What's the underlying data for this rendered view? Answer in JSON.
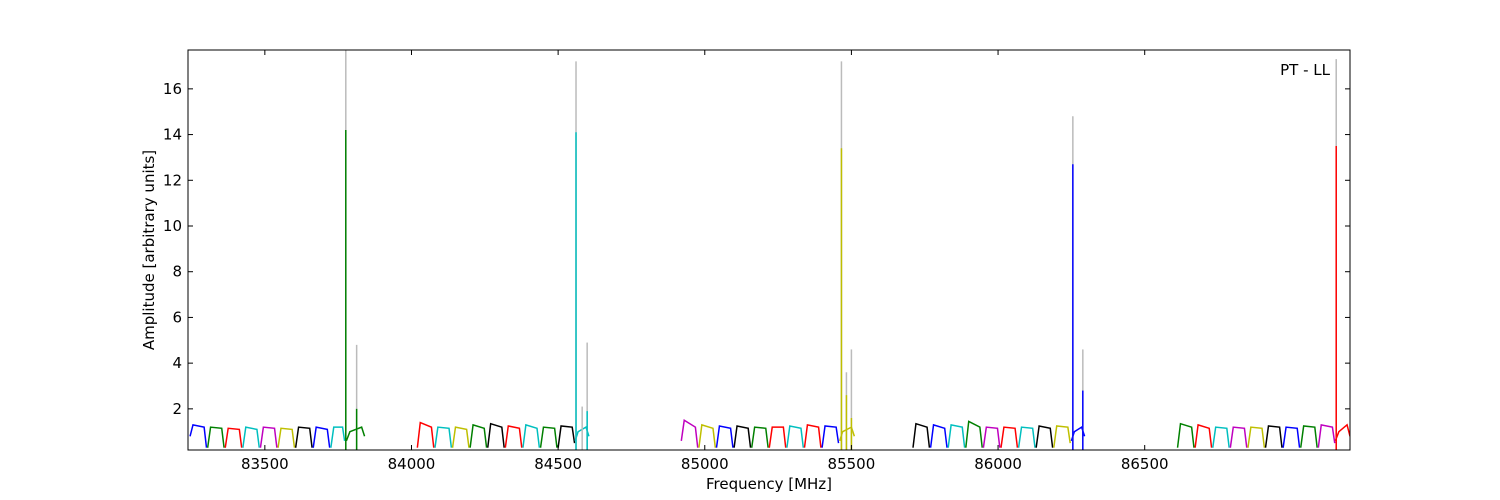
{
  "chart_data": {
    "type": "spectrum",
    "xlabel": "Frequency [MHz]",
    "ylabel": "Amplitude [arbitrary units]",
    "annotation": "PT - LL",
    "xlim": [
      83238,
      87200
    ],
    "ylim": [
      0.2,
      17.7
    ],
    "xticks": [
      83500,
      84000,
      84500,
      85000,
      85500,
      86000,
      86500
    ],
    "yticks": [
      2,
      4,
      6,
      8,
      10,
      12,
      14,
      16
    ],
    "windows": [
      {
        "color": "#0000ff",
        "x": [
          83245,
          83255,
          83293,
          83301
        ],
        "values": [
          0.8,
          1.3,
          1.2,
          0.3
        ]
      },
      {
        "color": "#008000",
        "x": [
          83305,
          83315,
          83353,
          83361
        ],
        "values": [
          0.3,
          1.2,
          1.15,
          0.3
        ]
      },
      {
        "color": "#ff0000",
        "x": [
          83365,
          83375,
          83413,
          83421
        ],
        "values": [
          0.3,
          1.15,
          1.1,
          0.3
        ]
      },
      {
        "color": "#00bfbf",
        "x": [
          83425,
          83435,
          83473,
          83481
        ],
        "values": [
          0.3,
          1.2,
          1.1,
          0.3
        ]
      },
      {
        "color": "#bf00bf",
        "x": [
          83485,
          83495,
          83533,
          83541
        ],
        "values": [
          0.3,
          1.2,
          1.15,
          0.3
        ]
      },
      {
        "color": "#bfbf00",
        "x": [
          83545,
          83555,
          83593,
          83601
        ],
        "values": [
          0.3,
          1.15,
          1.1,
          0.3
        ]
      },
      {
        "color": "#000000",
        "x": [
          83605,
          83615,
          83653,
          83661
        ],
        "values": [
          0.3,
          1.2,
          1.15,
          0.3
        ]
      },
      {
        "color": "#0000ff",
        "x": [
          83665,
          83675,
          83713,
          83721
        ],
        "values": [
          0.3,
          1.2,
          1.1,
          0.3
        ]
      },
      {
        "color": "#00bfbf",
        "x": [
          83725,
          83735,
          83765,
          83772
        ],
        "values": [
          0.3,
          1.2,
          1.2,
          0.6
        ]
      },
      {
        "color": "#008000",
        "x": [
          83778,
          83790,
          83830,
          83840
        ],
        "values": [
          0.6,
          1.0,
          1.2,
          0.8
        ]
      },
      {
        "color": "#ff0000",
        "x": [
          84020,
          84030,
          84068,
          84076
        ],
        "values": [
          0.3,
          1.4,
          1.2,
          0.3
        ]
      },
      {
        "color": "#00bfbf",
        "x": [
          84080,
          84090,
          84128,
          84136
        ],
        "values": [
          0.3,
          1.2,
          1.15,
          0.3
        ]
      },
      {
        "color": "#bfbf00",
        "x": [
          84140,
          84150,
          84188,
          84196
        ],
        "values": [
          0.3,
          1.2,
          1.1,
          0.3
        ]
      },
      {
        "color": "#008000",
        "x": [
          84200,
          84210,
          84248,
          84256
        ],
        "values": [
          0.3,
          1.3,
          1.15,
          0.3
        ]
      },
      {
        "color": "#000000",
        "x": [
          84260,
          84270,
          84308,
          84316
        ],
        "values": [
          0.3,
          1.35,
          1.2,
          0.3
        ]
      },
      {
        "color": "#ff0000",
        "x": [
          84320,
          84330,
          84368,
          84376
        ],
        "values": [
          0.3,
          1.25,
          1.15,
          0.3
        ]
      },
      {
        "color": "#00bfbf",
        "x": [
          84380,
          84390,
          84428,
          84436
        ],
        "values": [
          0.3,
          1.3,
          1.15,
          0.3
        ]
      },
      {
        "color": "#008000",
        "x": [
          84440,
          84450,
          84488,
          84496
        ],
        "values": [
          0.3,
          1.2,
          1.15,
          0.3
        ]
      },
      {
        "color": "#000000",
        "x": [
          84500,
          84510,
          84548,
          84556
        ],
        "values": [
          0.3,
          1.25,
          1.2,
          0.5
        ]
      },
      {
        "color": "#00bfbf",
        "x": [
          84558,
          84568,
          84595,
          84605
        ],
        "values": [
          0.6,
          1.0,
          1.2,
          0.8
        ]
      },
      {
        "color": "#bf00bf",
        "x": [
          84920,
          84930,
          84968,
          84976
        ],
        "values": [
          0.6,
          1.5,
          1.2,
          0.3
        ]
      },
      {
        "color": "#bfbf00",
        "x": [
          84980,
          84990,
          85028,
          85036
        ],
        "values": [
          0.3,
          1.3,
          1.15,
          0.3
        ]
      },
      {
        "color": "#0000ff",
        "x": [
          85040,
          85050,
          85088,
          85096
        ],
        "values": [
          0.3,
          1.25,
          1.15,
          0.3
        ]
      },
      {
        "color": "#000000",
        "x": [
          85100,
          85110,
          85148,
          85156
        ],
        "values": [
          0.3,
          1.25,
          1.15,
          0.3
        ]
      },
      {
        "color": "#008000",
        "x": [
          85160,
          85170,
          85208,
          85216
        ],
        "values": [
          0.3,
          1.2,
          1.15,
          0.3
        ]
      },
      {
        "color": "#ff0000",
        "x": [
          85220,
          85230,
          85268,
          85276
        ],
        "values": [
          0.3,
          1.2,
          1.2,
          0.3
        ]
      },
      {
        "color": "#00bfbf",
        "x": [
          85280,
          85290,
          85328,
          85336
        ],
        "values": [
          0.3,
          1.25,
          1.15,
          0.3
        ]
      },
      {
        "color": "#ff0000",
        "x": [
          85340,
          85350,
          85388,
          85396
        ],
        "values": [
          0.3,
          1.3,
          1.2,
          0.3
        ]
      },
      {
        "color": "#0000ff",
        "x": [
          85400,
          85410,
          85448,
          85456
        ],
        "values": [
          0.3,
          1.25,
          1.2,
          0.5
        ]
      },
      {
        "color": "#bfbf00",
        "x": [
          85460,
          85470,
          85500,
          85510
        ],
        "values": [
          0.6,
          1.0,
          1.2,
          0.8
        ]
      },
      {
        "color": "#000000",
        "x": [
          85710,
          85720,
          85758,
          85766
        ],
        "values": [
          0.3,
          1.35,
          1.2,
          0.3
        ]
      },
      {
        "color": "#0000ff",
        "x": [
          85770,
          85780,
          85818,
          85826
        ],
        "values": [
          0.3,
          1.3,
          1.15,
          0.3
        ]
      },
      {
        "color": "#00bfbf",
        "x": [
          85830,
          85840,
          85878,
          85886
        ],
        "values": [
          0.3,
          1.3,
          1.2,
          0.3
        ]
      },
      {
        "color": "#008000",
        "x": [
          85890,
          85900,
          85938,
          85946
        ],
        "values": [
          0.3,
          1.45,
          1.2,
          0.3
        ]
      },
      {
        "color": "#bf00bf",
        "x": [
          85950,
          85960,
          85998,
          86006
        ],
        "values": [
          0.3,
          1.2,
          1.15,
          0.3
        ]
      },
      {
        "color": "#ff0000",
        "x": [
          86010,
          86020,
          86058,
          86066
        ],
        "values": [
          0.3,
          1.2,
          1.15,
          0.3
        ]
      },
      {
        "color": "#00bfbf",
        "x": [
          86070,
          86080,
          86118,
          86126
        ],
        "values": [
          0.3,
          1.2,
          1.15,
          0.3
        ]
      },
      {
        "color": "#000000",
        "x": [
          86130,
          86140,
          86178,
          86186
        ],
        "values": [
          0.3,
          1.25,
          1.15,
          0.3
        ]
      },
      {
        "color": "#bfbf00",
        "x": [
          86190,
          86200,
          86238,
          86246
        ],
        "values": [
          0.3,
          1.25,
          1.2,
          0.5
        ]
      },
      {
        "color": "#0000ff",
        "x": [
          86250,
          86260,
          86285,
          86295
        ],
        "values": [
          0.6,
          1.0,
          1.2,
          0.8
        ]
      },
      {
        "color": "#008000",
        "x": [
          86612,
          86622,
          86660,
          86668
        ],
        "values": [
          0.3,
          1.35,
          1.2,
          0.3
        ]
      },
      {
        "color": "#ff0000",
        "x": [
          86672,
          86682,
          86720,
          86728
        ],
        "values": [
          0.3,
          1.3,
          1.15,
          0.3
        ]
      },
      {
        "color": "#00bfbf",
        "x": [
          86732,
          86742,
          86780,
          86788
        ],
        "values": [
          0.3,
          1.2,
          1.15,
          0.3
        ]
      },
      {
        "color": "#bf00bf",
        "x": [
          86792,
          86802,
          86840,
          86848
        ],
        "values": [
          0.3,
          1.2,
          1.15,
          0.3
        ]
      },
      {
        "color": "#bfbf00",
        "x": [
          86852,
          86862,
          86900,
          86908
        ],
        "values": [
          0.3,
          1.2,
          1.15,
          0.3
        ]
      },
      {
        "color": "#000000",
        "x": [
          86912,
          86922,
          86960,
          86968
        ],
        "values": [
          0.3,
          1.25,
          1.2,
          0.3
        ]
      },
      {
        "color": "#0000ff",
        "x": [
          86972,
          86982,
          87020,
          87028
        ],
        "values": [
          0.3,
          1.2,
          1.15,
          0.3
        ]
      },
      {
        "color": "#008000",
        "x": [
          87032,
          87042,
          87080,
          87088
        ],
        "values": [
          0.3,
          1.25,
          1.2,
          0.3
        ]
      },
      {
        "color": "#bf00bf",
        "x": [
          87092,
          87102,
          87140,
          87148
        ],
        "values": [
          0.3,
          1.3,
          1.2,
          0.5
        ]
      },
      {
        "color": "#ff0000",
        "x": [
          87150,
          87162,
          87190,
          87200
        ],
        "values": [
          0.6,
          1.0,
          1.3,
          0.8
        ]
      }
    ],
    "spikes": [
      {
        "color": "#bbbbbb",
        "x": 83776,
        "value": 17.7
      },
      {
        "color": "#bbbbbb",
        "x": 83813,
        "value": 4.8
      },
      {
        "color": "#bbbbbb",
        "x": 84561,
        "value": 17.2
      },
      {
        "color": "#bbbbbb",
        "x": 84582,
        "value": 2.1
      },
      {
        "color": "#bbbbbb",
        "x": 84599,
        "value": 4.9
      },
      {
        "color": "#bbbbbb",
        "x": 85466,
        "value": 17.2
      },
      {
        "color": "#bbbbbb",
        "x": 85483,
        "value": 3.6
      },
      {
        "color": "#bbbbbb",
        "x": 85500,
        "value": 4.6
      },
      {
        "color": "#bbbbbb",
        "x": 86255,
        "value": 14.8
      },
      {
        "color": "#bbbbbb",
        "x": 86289,
        "value": 4.6
      },
      {
        "color": "#bbbbbb",
        "x": 87153,
        "value": 17.3
      },
      {
        "color": "#008000",
        "x": 83776,
        "value": 14.2
      },
      {
        "color": "#008000",
        "x": 83813,
        "value": 2.0
      },
      {
        "color": "#00bfbf",
        "x": 84561,
        "value": 14.1
      },
      {
        "color": "#00bfbf",
        "x": 84599,
        "value": 1.9
      },
      {
        "color": "#bfbf00",
        "x": 85466,
        "value": 13.4
      },
      {
        "color": "#bfbf00",
        "x": 85483,
        "value": 2.6
      },
      {
        "color": "#bfbf00",
        "x": 85500,
        "value": 1.6
      },
      {
        "color": "#0000ff",
        "x": 86255,
        "value": 12.7
      },
      {
        "color": "#0000ff",
        "x": 86289,
        "value": 2.8
      },
      {
        "color": "#ff0000",
        "x": 87153,
        "value": 13.5
      }
    ]
  }
}
